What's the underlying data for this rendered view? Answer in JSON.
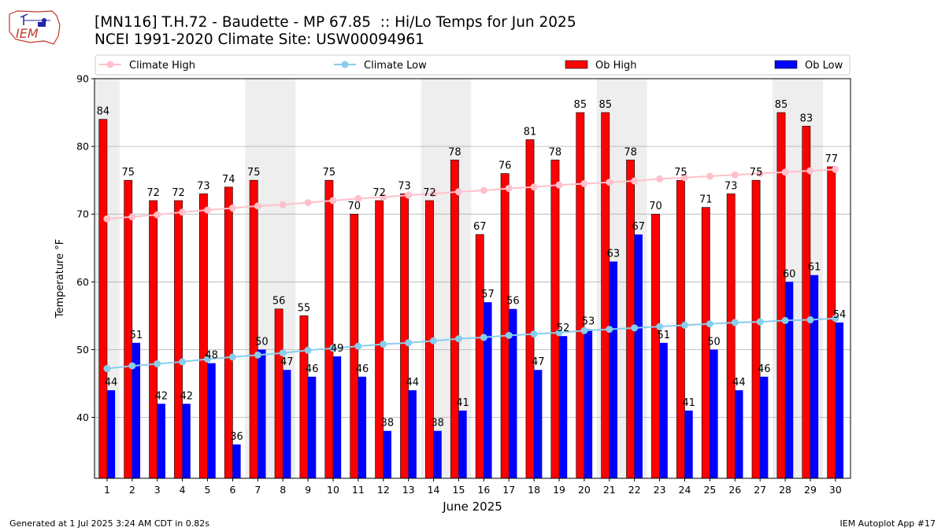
{
  "title_line1": "[MN116] T.H.72 - Baudette - MP 67.85  :: Hi/Lo Temps for Jun 2025",
  "title_line2": "NCEI 1991-2020 Climate Site: USW00094961",
  "footer_left": "Generated at 1 Jul 2025 3:24 AM CDT in 0.82s",
  "footer_right": "IEM Autoplot App #17",
  "logo_text": "IEM",
  "colors": {
    "ob_high": "#ff0000",
    "ob_low": "#0000ff",
    "climate_high": "#ffc0cb",
    "climate_low": "#87ceeb",
    "weekend_band": "#eeeeee"
  },
  "chart_data": {
    "type": "bar",
    "xlabel": "June 2025",
    "ylabel": "Temperature °F",
    "ylim": [
      31,
      90
    ],
    "yticks": [
      40,
      50,
      60,
      70,
      80,
      90
    ],
    "grid": true,
    "legend_position": "top",
    "categories": [
      "1",
      "2",
      "3",
      "4",
      "5",
      "6",
      "7",
      "8",
      "9",
      "10",
      "11",
      "12",
      "13",
      "14",
      "15",
      "16",
      "17",
      "18",
      "19",
      "20",
      "21",
      "22",
      "23",
      "24",
      "25",
      "26",
      "27",
      "28",
      "29",
      "30"
    ],
    "shaded_days": [
      1,
      7,
      8,
      14,
      15,
      21,
      22,
      28,
      29
    ],
    "series": [
      {
        "name": "Ob High",
        "kind": "bar",
        "values": [
          84,
          75,
          72,
          72,
          73,
          74,
          75,
          56,
          55,
          75,
          70,
          72,
          73,
          72,
          78,
          67,
          76,
          81,
          78,
          85,
          85,
          78,
          70,
          75,
          71,
          73,
          75,
          85,
          83,
          77
        ]
      },
      {
        "name": "Ob Low",
        "kind": "bar",
        "values": [
          44,
          51,
          42,
          42,
          48,
          36,
          50,
          47,
          46,
          49,
          46,
          38,
          44,
          38,
          41,
          57,
          56,
          47,
          52,
          53,
          63,
          67,
          51,
          41,
          50,
          44,
          46,
          60,
          61,
          54
        ]
      },
      {
        "name": "Climate High",
        "kind": "line",
        "values": [
          69.3,
          69.6,
          69.9,
          70.3,
          70.6,
          70.9,
          71.2,
          71.4,
          71.7,
          72.0,
          72.3,
          72.5,
          72.8,
          73.0,
          73.3,
          73.5,
          73.8,
          74.0,
          74.3,
          74.5,
          74.7,
          74.9,
          75.2,
          75.4,
          75.6,
          75.8,
          76.0,
          76.2,
          76.4,
          76.6
        ]
      },
      {
        "name": "Climate Low",
        "kind": "line",
        "values": [
          47.2,
          47.6,
          47.9,
          48.2,
          48.6,
          48.9,
          49.2,
          49.5,
          49.9,
          50.2,
          50.5,
          50.8,
          51.0,
          51.3,
          51.6,
          51.8,
          52.1,
          52.3,
          52.5,
          52.8,
          53.0,
          53.2,
          53.4,
          53.6,
          53.8,
          54.0,
          54.1,
          54.3,
          54.4,
          54.6
        ]
      }
    ]
  }
}
